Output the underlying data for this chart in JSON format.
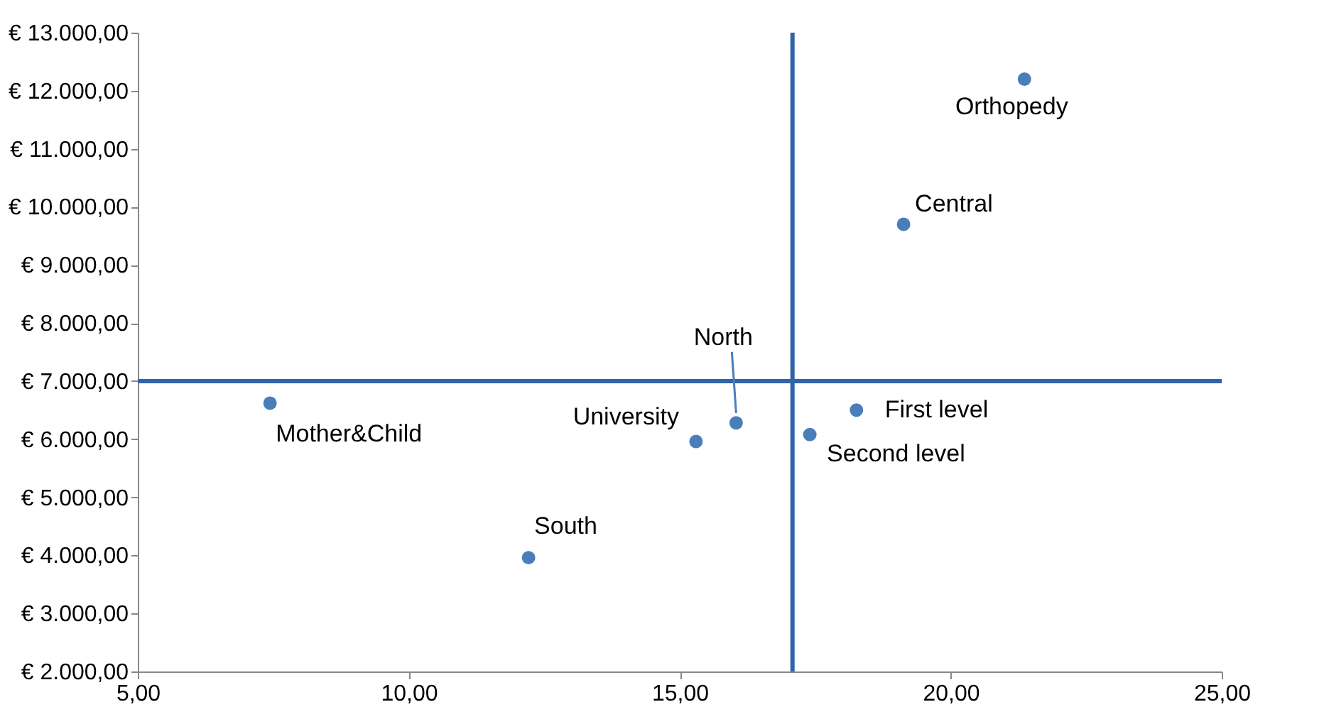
{
  "chart_data": {
    "type": "scatter",
    "x": [
      21.36,
      19.13,
      7.44,
      16.04,
      15.3,
      12.21,
      18.26,
      17.4
    ],
    "series": [
      {
        "color": "#4a7ebb",
        "values": [
          12200,
          9700,
          6620,
          6280,
          5960,
          3960,
          6500,
          6080
        ]
      }
    ],
    "annotations": [
      {
        "text": "Orthopedy",
        "x": 21.36,
        "y": 12200
      },
      {
        "text": "Central",
        "x": 19.13,
        "y": 9700
      },
      {
        "text": "Mother&Child",
        "x": 7.44,
        "y": 6620
      },
      {
        "text": "North",
        "x": 16.04,
        "y": 6280
      },
      {
        "text": "University",
        "x": 15.3,
        "y": 5960
      },
      {
        "text": "South",
        "x": 12.21,
        "y": 3960
      },
      {
        "text": "First level",
        "x": 18.26,
        "y": 6500
      },
      {
        "text": "Second level",
        "x": 17.4,
        "y": 6080
      }
    ],
    "xlim": [
      5,
      25
    ],
    "xticks": [
      {
        "value": 5,
        "label": "5,00"
      },
      {
        "value": 10,
        "label": "10,00"
      },
      {
        "value": 15,
        "label": "15,00"
      },
      {
        "value": 20,
        "label": "20,00"
      },
      {
        "value": 25,
        "label": "25,00"
      }
    ],
    "ylim": [
      2000,
      13000
    ],
    "yticks": [
      {
        "value": 2000,
        "label": "€ 2.000,00"
      },
      {
        "value": 3000,
        "label": "€ 3.000,00"
      },
      {
        "value": 4000,
        "label": "€ 4.000,00"
      },
      {
        "value": 5000,
        "label": "€ 5.000,00"
      },
      {
        "value": 6000,
        "label": "€ 6.000,00"
      },
      {
        "value": 7000,
        "label": "€ 7.000,00"
      },
      {
        "value": 8000,
        "label": "€ 8.000,00"
      },
      {
        "value": 9000,
        "label": "€ 9.000,00"
      },
      {
        "value": 10000,
        "label": "€ 10.000,00"
      },
      {
        "value": 11000,
        "label": "€ 11.000,00"
      },
      {
        "value": 12000,
        "label": "€ 12.000,00"
      },
      {
        "value": 13000,
        "label": "€ 13.000,00"
      }
    ],
    "ref_lines": [
      {
        "axis": "x",
        "value": 17.08,
        "color": "#2e64a8"
      },
      {
        "axis": "y",
        "value": 7000,
        "color": "#2e64a8"
      }
    ],
    "grid": false,
    "legend": false,
    "marker": "circle"
  }
}
